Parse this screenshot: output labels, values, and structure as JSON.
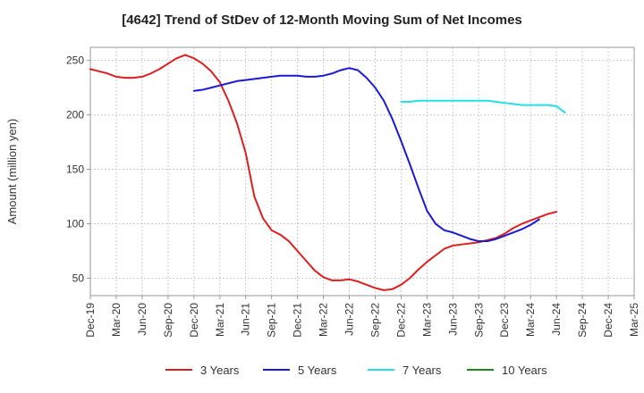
{
  "chart_data": {
    "type": "line",
    "title": "[4642]  Trend of StDev of 12-Month Moving Sum of Net Incomes",
    "xlabel": "",
    "ylabel": "Amount (million yen)",
    "ylim": [
      34,
      262
    ],
    "yticks": [
      50,
      100,
      150,
      200,
      250
    ],
    "x_tick_labels": [
      "Dec-19",
      "Mar-20",
      "Jun-20",
      "Sep-20",
      "Dec-20",
      "Mar-21",
      "Jun-21",
      "Sep-21",
      "Dec-21",
      "Mar-22",
      "Jun-22",
      "Sep-22",
      "Dec-22",
      "Mar-23",
      "Jun-23",
      "Sep-23",
      "Dec-23",
      "Mar-24",
      "Jun-24",
      "Sep-24",
      "Dec-24",
      "Mar-25"
    ],
    "grid": true,
    "legend_position": "bottom",
    "series": [
      {
        "name": "3 Years",
        "color": "#dd1f1f",
        "start_index": 0,
        "values": [
          242,
          240,
          238,
          235,
          234,
          234,
          235,
          238,
          242,
          247,
          252,
          255,
          252,
          247,
          240,
          230,
          213,
          192,
          165,
          125,
          105,
          94,
          90,
          84,
          75,
          66,
          57,
          51,
          48,
          48,
          49,
          47,
          44,
          41,
          39,
          40,
          44,
          50,
          58,
          65,
          71,
          77,
          80,
          81,
          82,
          83,
          85,
          87,
          91,
          96,
          100,
          103,
          106,
          109,
          111
        ]
      },
      {
        "name": "5 Years",
        "color": "#1a1ad6",
        "start_index": 12,
        "values": [
          222,
          223,
          225,
          227,
          229,
          231,
          232,
          233,
          234,
          235,
          236,
          236,
          236,
          235,
          235,
          236,
          238,
          241,
          243,
          241,
          234,
          225,
          213,
          196,
          176,
          155,
          133,
          112,
          100,
          94,
          92,
          89,
          86,
          84,
          84,
          86,
          89,
          92,
          95,
          99,
          104
        ]
      },
      {
        "name": "7 Years",
        "color": "#22e0e6",
        "start_index": 36,
        "values": [
          212,
          212,
          213,
          213,
          213,
          213,
          213,
          213,
          213,
          213,
          213,
          212,
          211,
          210,
          209,
          209,
          209,
          209,
          208,
          202
        ]
      },
      {
        "name": "10 Years",
        "color": "#1a8a1a",
        "start_index": 0,
        "values": []
      }
    ]
  }
}
